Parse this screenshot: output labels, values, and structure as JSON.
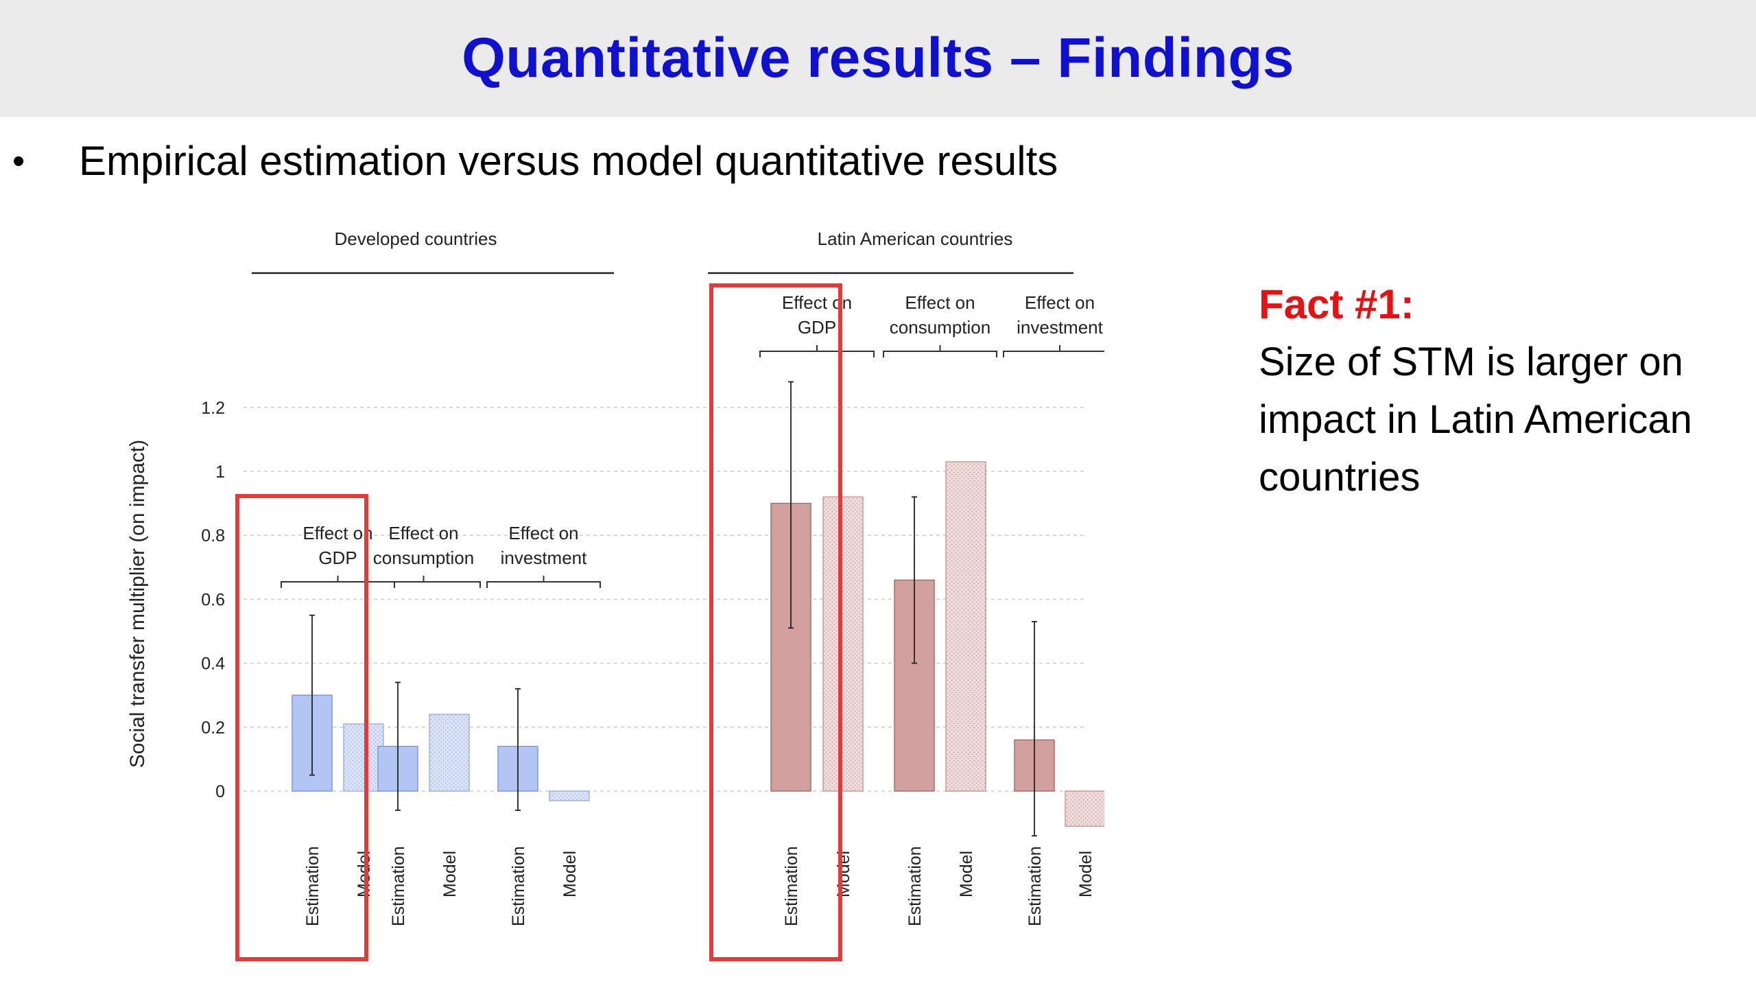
{
  "slide": {
    "title": "Quantitative results – Findings",
    "bullet": "Empirical estimation versus model quantitative results",
    "fact_heading": "Fact #1:",
    "fact_body": "Size of STM is larger on impact in Latin American countries"
  },
  "colors": {
    "title": "#1010d0",
    "fact_heading": "#e81010",
    "highlight_box": "#e53a3a",
    "developed_estimation": "#b3c6f3",
    "developed_model": "#dae3f7",
    "latin_estimation": "#d3a0a0",
    "latin_model": "#efdcdc"
  },
  "chart_data": {
    "type": "bar",
    "ylabel": "Social transfer multiplier (on impact)",
    "ylim": [
      -0.1,
      1.2
    ],
    "yticks": [
      0,
      0.2,
      0.4,
      0.6,
      0.8,
      1,
      1.2
    ],
    "ytick_labels": [
      "0",
      "0.2",
      "0.4",
      "0.6",
      "0.8",
      "1",
      "1.2"
    ],
    "grid": "horizontal dashed",
    "categories": [
      "Estimation",
      "Model"
    ],
    "groups": [
      {
        "name": "Developed countries",
        "panels": [
          {
            "label_line1": "Effect on",
            "label_line2": "GDP",
            "estimation": 0.3,
            "model": 0.21,
            "ci": [
              0.05,
              0.55
            ],
            "highlighted": true
          },
          {
            "label_line1": "Effect on",
            "label_line2": "consumption",
            "estimation": 0.14,
            "model": 0.24,
            "ci": [
              -0.06,
              0.34
            ],
            "highlighted": false
          },
          {
            "label_line1": "Effect on",
            "label_line2": "investment",
            "estimation": 0.14,
            "model": -0.03,
            "ci": [
              -0.06,
              0.32
            ],
            "highlighted": false
          }
        ]
      },
      {
        "name": "Latin American countries",
        "panels": [
          {
            "label_line1": "Effect on",
            "label_line2": "GDP",
            "estimation": 0.9,
            "model": 0.92,
            "ci": [
              0.51,
              1.28
            ],
            "highlighted": true
          },
          {
            "label_line1": "Effect on",
            "label_line2": "consumption",
            "estimation": 0.66,
            "model": 1.03,
            "ci": [
              0.4,
              0.92
            ],
            "highlighted": false
          },
          {
            "label_line1": "Effect on",
            "label_line2": "investment",
            "estimation": 0.16,
            "model": -0.11,
            "ci": [
              -0.14,
              0.53
            ],
            "highlighted": false
          }
        ]
      }
    ]
  }
}
